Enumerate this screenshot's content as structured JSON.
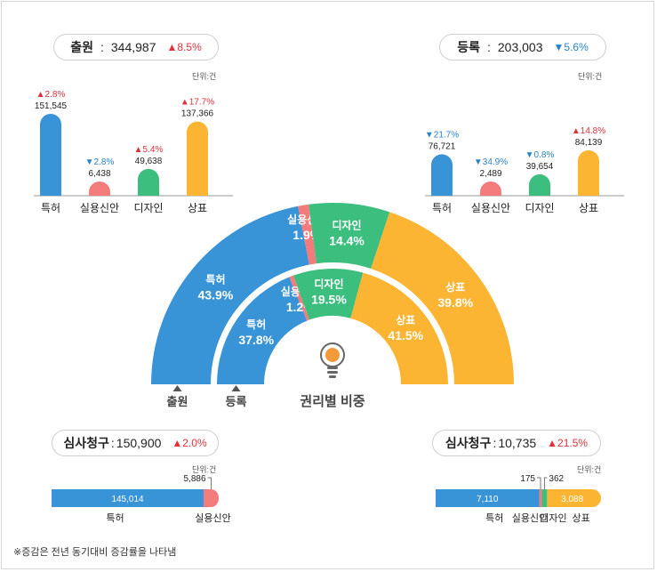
{
  "chart_data": [
    {
      "type": "bar",
      "title": "출원",
      "total": "344,987",
      "total_change": "8.5%",
      "total_change_dir": "up",
      "unit": "단위:건",
      "categories": [
        "특허",
        "실용신안",
        "디자인",
        "상표"
      ],
      "values": [
        151545,
        6438,
        49638,
        137366
      ],
      "value_labels": [
        "151,545",
        "6,438",
        "49,638",
        "137,366"
      ],
      "changes": [
        "2.8%",
        "2.8%",
        "5.4%",
        "17.7%"
      ],
      "change_dirs": [
        "up",
        "down",
        "up",
        "up"
      ],
      "colors": [
        "#3894d6",
        "#f47b7b",
        "#3cbf7e",
        "#fbb532"
      ]
    },
    {
      "type": "bar",
      "title": "등록",
      "total": "203,003",
      "total_change": "5.6%",
      "total_change_dir": "down",
      "unit": "단위:건",
      "categories": [
        "특허",
        "실용신안",
        "디자인",
        "상표"
      ],
      "values": [
        76721,
        2489,
        39654,
        84139
      ],
      "value_labels": [
        "76,721",
        "2,489",
        "39,654",
        "84,139"
      ],
      "changes": [
        "21.7%",
        "34.9%",
        "0.8%",
        "14.8%"
      ],
      "change_dirs": [
        "down",
        "down",
        "down",
        "up"
      ],
      "colors": [
        "#3894d6",
        "#f47b7b",
        "#3cbf7e",
        "#fbb532"
      ]
    },
    {
      "type": "pie",
      "title": "권리별 비중",
      "rings": [
        {
          "name": "출원",
          "categories": [
            "특허",
            "실용신안",
            "디자인",
            "상표"
          ],
          "values": [
            43.9,
            1.9,
            14.4,
            39.8
          ],
          "labels": [
            "43.9%",
            "1.9%",
            "14.4%",
            "39.8%"
          ]
        },
        {
          "name": "등록",
          "categories": [
            "특허",
            "실용신안",
            "디자인",
            "상표"
          ],
          "values": [
            37.8,
            1.2,
            19.5,
            41.5
          ],
          "labels": [
            "37.8%",
            "1.2%",
            "19.5%",
            "41.5%"
          ]
        }
      ],
      "colors": [
        "#3894d6",
        "#f47b7b",
        "#3cbf7e",
        "#fbb532"
      ]
    },
    {
      "type": "bar",
      "orientation": "horizontal-stacked",
      "title": "심사청구",
      "total": "150,900",
      "total_change": "2.0%",
      "total_change_dir": "up",
      "unit": "단위:건",
      "categories": [
        "특허",
        "실용신안"
      ],
      "values": [
        145014,
        5886
      ],
      "value_labels": [
        "145,014",
        "5,886"
      ],
      "colors": [
        "#3894d6",
        "#f47b7b"
      ]
    },
    {
      "type": "bar",
      "orientation": "horizontal-stacked",
      "title": "심사청구",
      "total": "10,735",
      "total_change": "21.5%",
      "total_change_dir": "up",
      "unit": "단위:건",
      "categories": [
        "특허",
        "실용신안",
        "디자인",
        "상표"
      ],
      "values": [
        7110,
        175,
        362,
        3088
      ],
      "value_labels": [
        "7,110",
        "175",
        "362",
        "3,088"
      ],
      "colors": [
        "#3894d6",
        "#f47b7b",
        "#3cbf7e",
        "#fbb532"
      ]
    }
  ],
  "footnote": "※증감은 전년 동기대비 증감률을 나타냄",
  "symbols": {
    "up": "▲",
    "down": "▼",
    "colon": ":"
  },
  "icon": "lightbulb-icon"
}
